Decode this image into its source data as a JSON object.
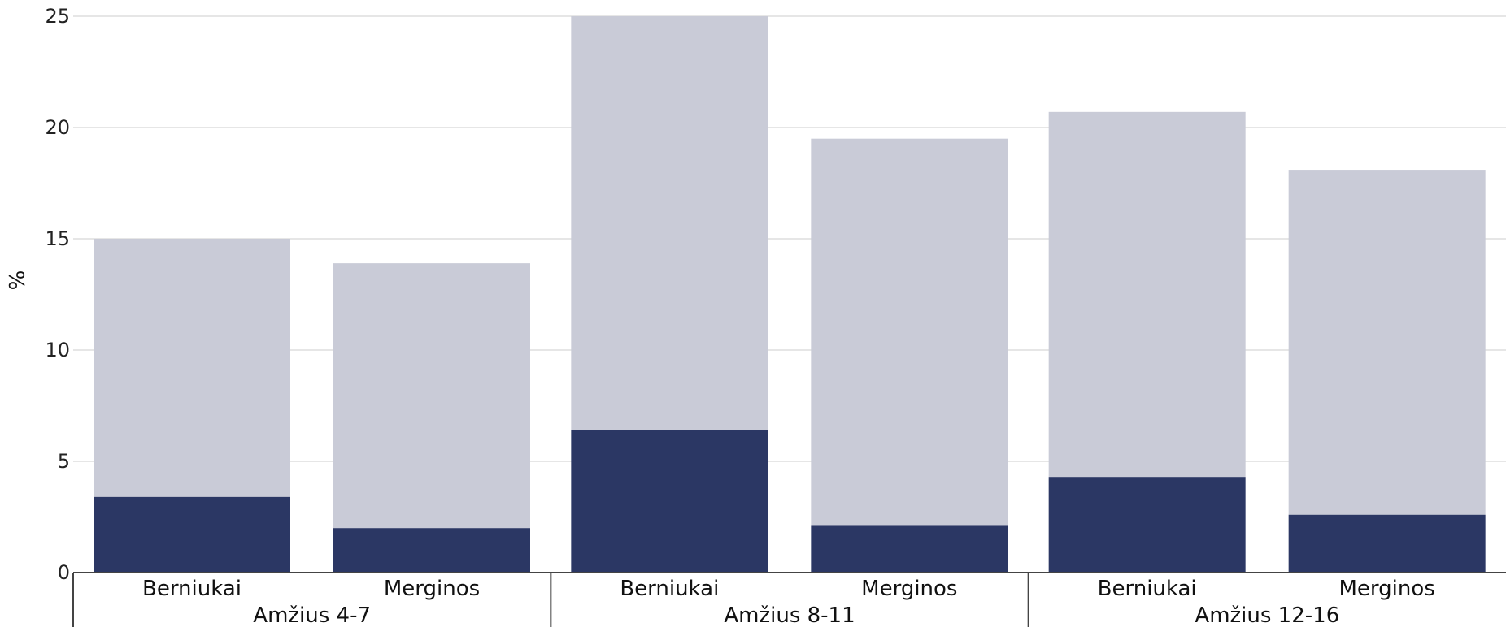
{
  "chart_data": {
    "type": "bar",
    "stacked": true,
    "ylabel": "%",
    "ylim": [
      0,
      25
    ],
    "yticks": [
      0,
      5,
      10,
      15,
      20,
      25
    ],
    "grid": true,
    "colors": {
      "lower": "#2b3764",
      "upper": "#c9cbd7",
      "grid": "#e6e6e6",
      "axis": "#444444"
    },
    "groups": [
      {
        "label": "Amžius 4-7",
        "categories": [
          "Berniukai",
          "Merginos"
        ],
        "lower": [
          3.4,
          2.0
        ],
        "total": [
          15.0,
          13.9
        ]
      },
      {
        "label": "Amžius 8-11",
        "categories": [
          "Berniukai",
          "Merginos"
        ],
        "lower": [
          6.4,
          2.1
        ],
        "total": [
          25.0,
          19.5
        ]
      },
      {
        "label": "Amžius 12-16",
        "categories": [
          "Berniukai",
          "Merginos"
        ],
        "lower": [
          4.3,
          2.6
        ],
        "total": [
          20.7,
          18.1
        ]
      }
    ]
  }
}
